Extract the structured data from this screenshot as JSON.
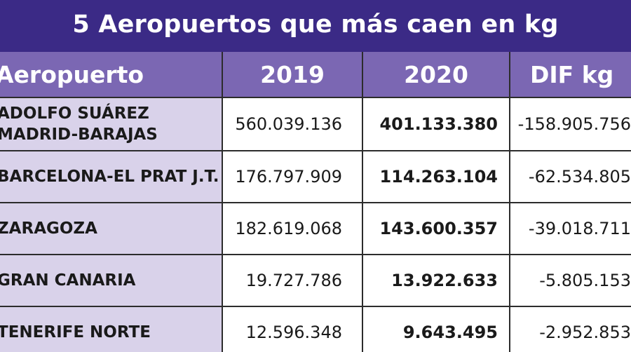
{
  "title": "5 Aeropuertos que más caen en kg",
  "columns": [
    "Aeropuerto",
    "2019",
    "2020",
    "DIF kg"
  ],
  "rows": [
    {
      "airport": "ADOLFO SUÁREZ\nMADRID-BARAJAS",
      "y2019": "560.039.136",
      "y2020": "401.133.380",
      "dif": "-158.905.756"
    },
    {
      "airport": "BARCELONA-EL PRAT J.T.",
      "y2019": "176.797.909",
      "y2020": "114.263.104",
      "dif": "-62.534.805"
    },
    {
      "airport": "ZARAGOZA",
      "y2019": "182.619.068",
      "y2020": "143.600.357",
      "dif": "-39.018.711"
    },
    {
      "airport": "GRAN CANARIA",
      "y2019": "19.727.786",
      "y2020": "13.922.633",
      "dif": "-5.805.153"
    },
    {
      "airport": "TENERIFE NORTE",
      "y2019": "12.596.348",
      "y2020": "9.643.495",
      "dif": "-2.952.853"
    }
  ],
  "colors": {
    "title_bg": "#3b2a86",
    "header_bg": "#7b67b3",
    "first_col_bg": "#d9d2ea",
    "grid": "#2c2c2c"
  }
}
